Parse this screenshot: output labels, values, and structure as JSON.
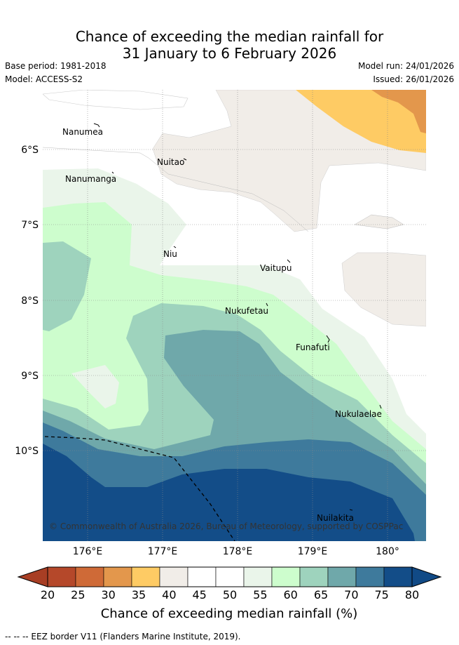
{
  "title": {
    "line1": "Chance of exceeding the median rainfall for",
    "line2": "31 January to 6 February 2026"
  },
  "info": {
    "base_period": "Base period: 1981-2018",
    "model": "Model: ACCESS-S2",
    "model_run": "Model run: 24/01/2026",
    "issued": "Issued: 26/01/2026"
  },
  "axes": {
    "x_ticks": [
      "176°E",
      "177°E",
      "178°E",
      "179°E",
      "180°"
    ],
    "y_ticks": [
      "6°S",
      "7°S",
      "8°S",
      "9°S",
      "10°S"
    ]
  },
  "places": {
    "nanumea": "Nanumea",
    "nuitao": "Nuitao",
    "nanumanga": "Nanumanga",
    "niu": "Niu",
    "vaitupu": "Vaitupu",
    "nukufetau": "Nukufetau",
    "funafuti": "Funafuti",
    "nukulaelae": "Nukulaelae",
    "nuilakita": "Nuilakita"
  },
  "copyright": "© Commonwealth of Australia 2026, Bureau of Meteorology, supported by COSPPac",
  "colorbar": {
    "title": "Chance of exceeding median rainfall (%)",
    "labels": [
      "20",
      "25",
      "30",
      "35",
      "40",
      "45",
      "50",
      "55",
      "60",
      "65",
      "70",
      "75",
      "80"
    ],
    "colors": [
      "#b5482a",
      "#cf6a37",
      "#e3974c",
      "#fecb64",
      "#f1ede8",
      "#ffffff",
      "#ffffff",
      "#eaf5ea",
      "#cdfdcd",
      "#9ed3bd",
      "#6fa8aa",
      "#3e7a9c",
      "#134d88"
    ],
    "under_color": "#a83e24",
    "over_color": "#114a86"
  },
  "footer": "--  --  -- EEZ border V11 (Flanders Marine Institute, 2019)."
}
